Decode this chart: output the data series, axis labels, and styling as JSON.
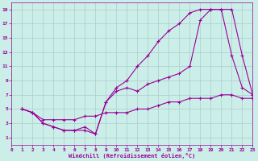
{
  "xlabel": "Windchill (Refroidissement éolien,°C)",
  "bg_color": "#cceee8",
  "grid_color": "#aacccc",
  "line_color": "#990099",
  "xlim": [
    0,
    23
  ],
  "ylim": [
    0,
    20
  ],
  "xticks": [
    0,
    1,
    2,
    3,
    4,
    5,
    6,
    7,
    8,
    9,
    10,
    11,
    12,
    13,
    14,
    15,
    16,
    17,
    18,
    19,
    20,
    21,
    22,
    23
  ],
  "yticks": [
    1,
    3,
    5,
    7,
    9,
    11,
    13,
    15,
    17,
    19
  ],
  "line1_x": [
    1,
    2,
    3,
    4,
    5,
    6,
    7,
    8,
    9,
    10,
    11,
    12,
    13,
    14,
    15,
    16,
    17,
    18,
    19,
    20,
    21,
    22,
    23
  ],
  "line1_y": [
    5,
    4.5,
    3.5,
    3.5,
    3.5,
    3.5,
    4,
    4,
    4.5,
    4.5,
    4.5,
    5,
    5,
    5.5,
    6,
    6,
    6.5,
    6.5,
    6.5,
    7,
    7,
    6.5,
    6.5
  ],
  "line2_x": [
    1,
    2,
    3,
    4,
    5,
    6,
    7,
    8,
    9,
    10,
    11,
    12,
    13,
    14,
    15,
    16,
    17,
    18,
    19,
    20,
    21,
    22,
    23
  ],
  "line2_y": [
    5,
    4.5,
    3,
    2.5,
    2,
    2,
    2,
    1.5,
    6,
    8,
    9,
    11,
    12.5,
    14.5,
    16,
    17,
    18.5,
    19,
    19,
    19,
    12.5,
    8,
    7
  ],
  "line3_x": [
    1,
    2,
    3,
    4,
    5,
    6,
    7,
    8,
    9,
    10,
    11,
    12,
    13,
    14,
    15,
    16,
    17,
    18,
    19,
    20,
    21,
    22,
    23
  ],
  "line3_y": [
    5,
    4.5,
    3,
    2.5,
    2,
    2,
    2.5,
    1.5,
    6,
    7.5,
    8,
    7.5,
    8.5,
    9,
    9.5,
    10,
    11,
    17.5,
    19,
    19,
    19,
    12.5,
    7
  ]
}
